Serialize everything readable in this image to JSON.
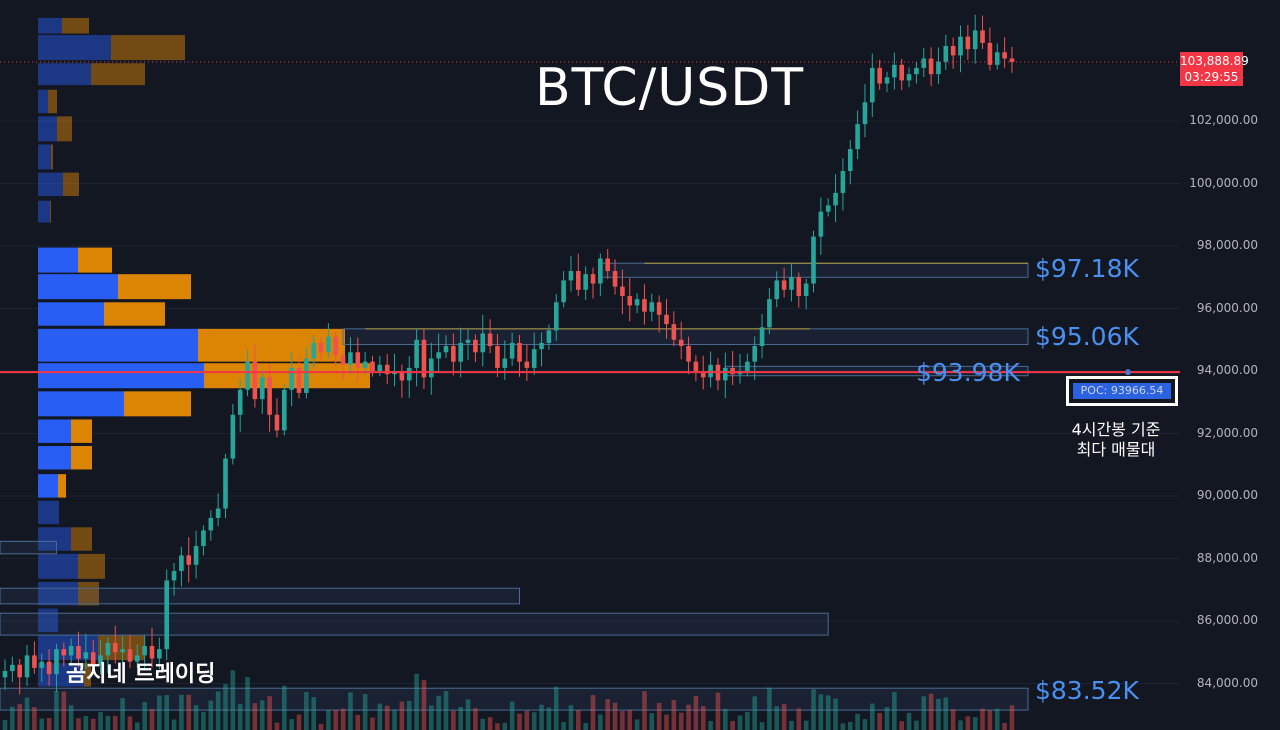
{
  "title": "BTC/USDT",
  "watermark": "곰지네 트레이딩",
  "price_badge": {
    "price": "103,888.89",
    "countdown": "03:29:55"
  },
  "poc": {
    "label": "POC: 93966.54",
    "note_line1": "4시간봉 기준",
    "note_line2": "최다 매물대"
  },
  "levels": [
    {
      "value": 97180,
      "label": "$97.18K"
    },
    {
      "value": 95060,
      "label": "$95.06K"
    },
    {
      "value": 93980,
      "label": "$93.98K"
    },
    {
      "value": 83520,
      "label": "$83.52K"
    }
  ],
  "colors": {
    "background": "#131722",
    "up": "#26a69a",
    "down": "#ef5350",
    "poc_line": "#f23645",
    "profile_up": "#2962ff",
    "profile_down": "#ff9800",
    "level_text": "#4a90f0"
  },
  "chart_data": {
    "type": "candlestick",
    "title": "BTC/USDT",
    "y_axis": {
      "ticks": [
        84000,
        86000,
        88000,
        90000,
        92000,
        94000,
        96000,
        98000,
        100000,
        102000
      ],
      "tick_labels": [
        "84,000.00",
        "86,000.00",
        "88,000.00",
        "90,000.00",
        "92,000.00",
        "94,000.00",
        "96,000.00",
        "98,000.00",
        "100,000.00",
        "102,000.00"
      ],
      "ylim": [
        82500,
        105500
      ]
    },
    "last_price": 103888.89,
    "poc_price": 93966.54,
    "close_path": [
      84400,
      84600,
      84200,
      84900,
      84500,
      84700,
      84300,
      85100,
      84900,
      85200,
      84800,
      85000,
      84600,
      84900,
      85300,
      85000,
      85100,
      84700,
      84900,
      85200,
      84800,
      85100,
      87300,
      87600,
      88100,
      87800,
      88400,
      88900,
      89300,
      89600,
      91200,
      92600,
      93400,
      94300,
      93100,
      93800,
      92600,
      92100,
      93400,
      94100,
      93300,
      94400,
      94900,
      94600,
      95100,
      94500,
      94200,
      94600,
      94100,
      94300,
      94000,
      94200,
      93900,
      94000,
      93700,
      94100,
      95000,
      93800,
      94400,
      94600,
      94800,
      94300,
      94900,
      95000,
      94600,
      95200,
      94800,
      94100,
      94400,
      94900,
      94300,
      94100,
      94700,
      94900,
      95300,
      96200,
      96900,
      97200,
      96600,
      97100,
      96800,
      97600,
      97200,
      96700,
      96400,
      96100,
      96300,
      95900,
      96200,
      95800,
      95500,
      95000,
      94800,
      94300,
      94000,
      93800,
      94200,
      93700,
      94100,
      93900,
      94000,
      94300,
      94800,
      95400,
      96300,
      96900,
      96600,
      97000,
      96400,
      96800,
      98300,
      99100,
      99300,
      99700,
      100400,
      101100,
      101900,
      102600,
      103700,
      103200,
      103400,
      103800,
      103300,
      103500,
      103700,
      104000,
      103500,
      103900,
      104400,
      104100,
      104700,
      104300,
      104900,
      104500,
      103800,
      104200,
      104000,
      103890
    ],
    "volume_profile": [
      {
        "price_low": 104800,
        "price_high": 105300,
        "buy": 24,
        "sell": 27
      },
      {
        "price_low": 103950,
        "price_high": 104750,
        "buy": 73,
        "sell": 74
      },
      {
        "price_low": 103150,
        "price_high": 103850,
        "buy": 53,
        "sell": 54
      },
      {
        "price_low": 102250,
        "price_high": 103000,
        "buy": 10,
        "sell": 9
      },
      {
        "price_low": 101350,
        "price_high": 102150,
        "buy": 19,
        "sell": 15
      },
      {
        "price_low": 100450,
        "price_high": 101250,
        "buy": 13,
        "sell": 2
      },
      {
        "price_low": 99600,
        "price_high": 100350,
        "buy": 25,
        "sell": 16
      },
      {
        "price_low": 98750,
        "price_high": 99450,
        "buy": 12,
        "sell": 1
      },
      {
        "price_low": 97150,
        "price_high": 97950,
        "buy": 40,
        "sell": 34
      },
      {
        "price_low": 96300,
        "price_high": 97100,
        "buy": 80,
        "sell": 73
      },
      {
        "price_low": 95450,
        "price_high": 96200,
        "buy": 66,
        "sell": 61
      },
      {
        "price_low": 94300,
        "price_high": 95350,
        "buy": 160,
        "sell": 147
      },
      {
        "price_low": 93450,
        "price_high": 94250,
        "buy": 166,
        "sell": 166
      },
      {
        "price_low": 92550,
        "price_high": 93350,
        "buy": 86,
        "sell": 67
      },
      {
        "price_low": 91700,
        "price_high": 92450,
        "buy": 33,
        "sell": 21
      },
      {
        "price_low": 90850,
        "price_high": 91600,
        "buy": 33,
        "sell": 21
      },
      {
        "price_low": 89950,
        "price_high": 90700,
        "buy": 20,
        "sell": 8
      },
      {
        "price_low": 89100,
        "price_high": 89850,
        "buy": 21,
        "sell": 0
      },
      {
        "price_low": 88250,
        "price_high": 89000,
        "buy": 33,
        "sell": 21
      },
      {
        "price_low": 87350,
        "price_high": 88150,
        "buy": 40,
        "sell": 27
      },
      {
        "price_low": 86500,
        "price_high": 87250,
        "buy": 40,
        "sell": 21
      },
      {
        "price_low": 85650,
        "price_high": 86400,
        "buy": 20,
        "sell": 0
      },
      {
        "price_low": 84750,
        "price_high": 85550,
        "buy": 60,
        "sell": 47
      },
      {
        "price_low": 83900,
        "price_high": 84650,
        "buy": 46,
        "sell": 7
      }
    ],
    "zones": [
      {
        "price_low": 97000,
        "price_high": 97450,
        "start_index": 81,
        "end": "right"
      },
      {
        "price_low": 94850,
        "price_high": 95350,
        "start_index": 46,
        "end": "right"
      },
      {
        "price_low": 93850,
        "price_high": 94150,
        "start_index": 98,
        "end": "right"
      },
      {
        "price_low": 86550,
        "price_high": 87050,
        "start_index": 0,
        "end_index": 70
      },
      {
        "price_low": 85550,
        "price_high": 86250,
        "start_index": 0,
        "end_index": 112
      },
      {
        "price_low": 83150,
        "price_high": 83850,
        "start_index": 0,
        "end": "right"
      },
      {
        "price_low": 88150,
        "price_high": 88550,
        "start_index": 0,
        "end_index": 7
      }
    ]
  }
}
